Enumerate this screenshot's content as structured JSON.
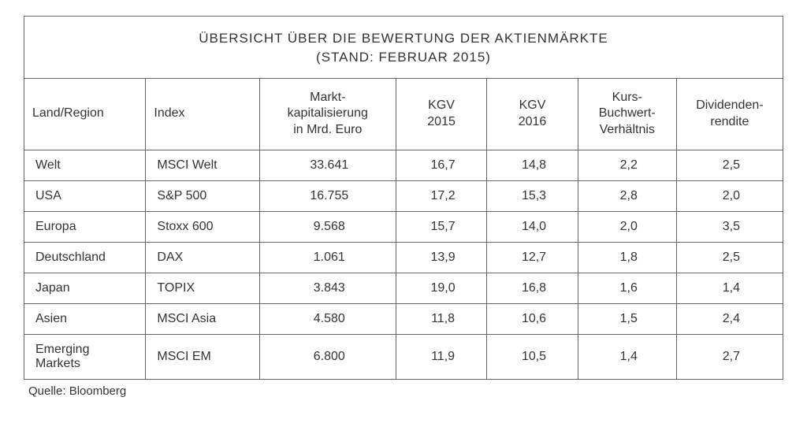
{
  "title_line1": "ÜBERSICHT ÜBER DIE BEWERTUNG DER AKTIENMÄRKTE",
  "title_line2": "(STAND: FEBRUAR 2015)",
  "columns": {
    "region": "Land/Region",
    "index": "Index",
    "marketcap": "Markt-\nkapitalisierung\nin Mrd. Euro",
    "kgv2015": "KGV\n2015",
    "kgv2016": "KGV\n2016",
    "kbv": "Kurs-\nBuchwert-\nVerhältnis",
    "divyield": "Dividenden-\nrendite"
  },
  "rows": [
    {
      "region": "Welt",
      "index": "MSCI Welt",
      "marketcap": "33.641",
      "kgv2015": "16,7",
      "kgv2016": "14,8",
      "kbv": "2,2",
      "divyield": "2,5"
    },
    {
      "region": "USA",
      "index": "S&P 500",
      "marketcap": "16.755",
      "kgv2015": "17,2",
      "kgv2016": "15,3",
      "kbv": "2,8",
      "divyield": "2,0"
    },
    {
      "region": "Europa",
      "index": "Stoxx 600",
      "marketcap": "9.568",
      "kgv2015": "15,7",
      "kgv2016": "14,0",
      "kbv": "2,0",
      "divyield": "3,5"
    },
    {
      "region": "Deutschland",
      "index": "DAX",
      "marketcap": "1.061",
      "kgv2015": "13,9",
      "kgv2016": "12,7",
      "kbv": "1,8",
      "divyield": "2,5"
    },
    {
      "region": "Japan",
      "index": "TOPIX",
      "marketcap": "3.843",
      "kgv2015": "19,0",
      "kgv2016": "16,8",
      "kbv": "1,6",
      "divyield": "1,4"
    },
    {
      "region": "Asien",
      "index": "MSCI Asia",
      "marketcap": "4.580",
      "kgv2015": "11,8",
      "kgv2016": "10,6",
      "kbv": "1,5",
      "divyield": "2,4"
    },
    {
      "region": "Emerging Markets",
      "index": "MSCI EM",
      "marketcap": "6.800",
      "kgv2015": "11,9",
      "kgv2016": "10,5",
      "kbv": "1,4",
      "divyield": "2,7"
    }
  ],
  "source": "Quelle: Bloomberg",
  "style": {
    "border_color": "#666666",
    "text_color": "#333333",
    "background_color": "#ffffff",
    "title_fontsize": 17,
    "header_fontsize": 16,
    "cell_fontsize": 16,
    "column_widths_pct": [
      16,
      15,
      18,
      12,
      12,
      13,
      14
    ],
    "numeric_columns_centered": true
  }
}
